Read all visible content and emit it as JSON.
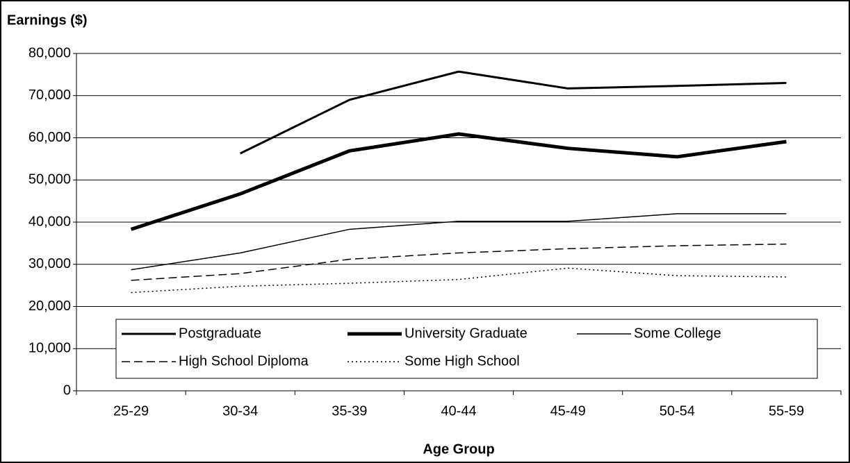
{
  "chart_data": {
    "type": "line",
    "title": "Earnings ($)",
    "x_label": "Age Group",
    "categories": [
      "25-29",
      "30-34",
      "35-39",
      "40-44",
      "45-49",
      "50-54",
      "55-59"
    ],
    "series": [
      {
        "name": "Postgraduate",
        "color": "#000000",
        "width": 3,
        "dash": "none",
        "values": [
          null,
          56300,
          69000,
          75700,
          71700,
          72300,
          73000
        ]
      },
      {
        "name": "University Graduate",
        "color": "#000000",
        "width": 5,
        "dash": "none",
        "values": [
          38300,
          46700,
          56900,
          60900,
          57500,
          55500,
          59100
        ]
      },
      {
        "name": "Some College",
        "color": "#000000",
        "width": 1.5,
        "dash": "none",
        "values": [
          28700,
          32700,
          38300,
          40200,
          40200,
          42000,
          42000
        ]
      },
      {
        "name": "High School Diploma",
        "color": "#000000",
        "width": 1.5,
        "dash": "12 6",
        "values": [
          26200,
          27800,
          31200,
          32700,
          33700,
          34400,
          34800
        ]
      },
      {
        "name": "Some High School",
        "color": "#000000",
        "width": 1.5,
        "dash": "2 4",
        "values": [
          23300,
          24800,
          25500,
          26400,
          29100,
          27300,
          27000
        ]
      }
    ],
    "ylim": [
      0,
      80000
    ],
    "yticks": [
      0,
      {
        "value": 10000,
        "label": "10,000"
      },
      {
        "value": 20000,
        "label": "20,000"
      },
      {
        "value": 30000,
        "label": "30,000"
      },
      {
        "value": 40000,
        "label": "40,000"
      },
      {
        "value": 50000,
        "label": "50,000"
      },
      {
        "value": 60000,
        "label": "60,000"
      },
      {
        "value": 70000,
        "label": "70,000"
      },
      {
        "value": 80000,
        "label": "80,000"
      }
    ],
    "grid": true,
    "legend": "bottom"
  }
}
